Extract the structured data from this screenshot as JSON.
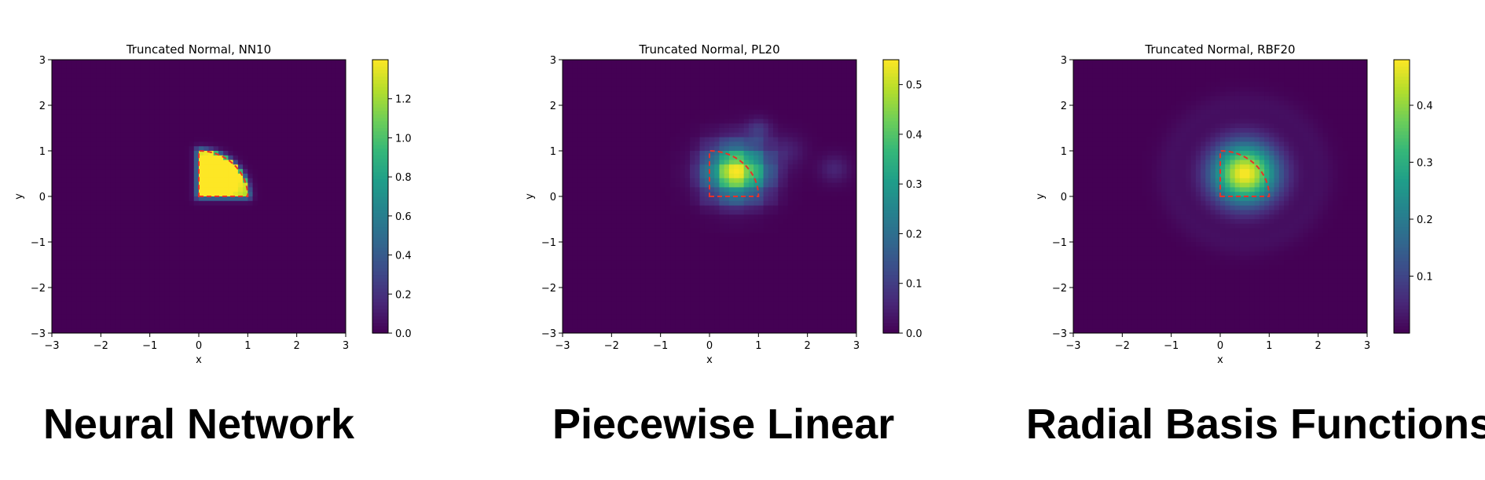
{
  "colormap": [
    "#440154",
    "#482878",
    "#3e4989",
    "#31688e",
    "#26828e",
    "#1f9e89",
    "#35b779",
    "#6ece58",
    "#b5de2b",
    "#fde725"
  ],
  "boundary_color": "#e8322a",
  "chart_data": [
    {
      "type": "heatmap",
      "title": "Truncated Normal, NN10",
      "xlabel": "x",
      "ylabel": "y",
      "xlim": [
        -3,
        3
      ],
      "ylim": [
        -3,
        3
      ],
      "xticks": [
        -3,
        -2,
        -1,
        0,
        1,
        2,
        3
      ],
      "yticks": [
        -3,
        -2,
        -1,
        0,
        1,
        2,
        3
      ],
      "xtick_labels": [
        "−3",
        "−2",
        "−1",
        "0",
        "1",
        "2",
        "3"
      ],
      "ytick_labels": [
        "−3",
        "−2",
        "−1",
        "0",
        "1",
        "2",
        "3"
      ],
      "colorbar": {
        "min": 0,
        "max": 1.4,
        "ticks": [
          0.0,
          0.2,
          0.4,
          0.6,
          0.8,
          1.0,
          1.2
        ],
        "tick_labels": [
          "0.0",
          "0.2",
          "0.4",
          "0.6",
          "0.8",
          "1.0",
          "1.2"
        ]
      },
      "density_model": "sharp",
      "density_peak": 1.4,
      "support_region": "quarter disk of radius 1 centered at origin, x≥0, y≥0 (dashed red boundary)",
      "caption": "Neural Network"
    },
    {
      "type": "heatmap",
      "title": "Truncated Normal, PL20",
      "xlabel": "x",
      "ylabel": "y",
      "xlim": [
        -3,
        3
      ],
      "ylim": [
        -3,
        3
      ],
      "xticks": [
        -3,
        -2,
        -1,
        0,
        1,
        2,
        3
      ],
      "yticks": [
        -3,
        -2,
        -1,
        0,
        1,
        2,
        3
      ],
      "xtick_labels": [
        "−3",
        "−2",
        "−1",
        "0",
        "1",
        "2",
        "3"
      ],
      "ytick_labels": [
        "−3",
        "−2",
        "−1",
        "0",
        "1",
        "2",
        "3"
      ],
      "colorbar": {
        "min": 0,
        "max": 0.55,
        "ticks": [
          0.0,
          0.1,
          0.2,
          0.3,
          0.4,
          0.5
        ],
        "tick_labels": [
          "0.0",
          "0.1",
          "0.2",
          "0.3",
          "0.4",
          "0.5"
        ]
      },
      "density_model": "piecewise",
      "density_peak": 0.55,
      "support_region": "quarter disk of radius 1 centered at origin, x≥0, y≥0 (dashed red boundary)",
      "caption": "Piecewise Linear"
    },
    {
      "type": "heatmap",
      "title": "Truncated Normal, RBF20",
      "xlabel": "x",
      "ylabel": "y",
      "xlim": [
        -3,
        3
      ],
      "ylim": [
        -3,
        3
      ],
      "xticks": [
        -3,
        -2,
        -1,
        0,
        1,
        2,
        3
      ],
      "yticks": [
        -3,
        -2,
        -1,
        0,
        1,
        2,
        3
      ],
      "xtick_labels": [
        "−3",
        "−2",
        "−1",
        "0",
        "1",
        "2",
        "3"
      ],
      "ytick_labels": [
        "−3",
        "−2",
        "−1",
        "0",
        "1",
        "2",
        "3"
      ],
      "colorbar": {
        "min": 0,
        "max": 0.48,
        "ticks": [
          0.1,
          0.2,
          0.3,
          0.4
        ],
        "tick_labels": [
          "0.1",
          "0.2",
          "0.3",
          "0.4"
        ]
      },
      "density_model": "smooth",
      "density_peak": 0.48,
      "support_region": "quarter disk of radius 1 centered at origin, x≥0, y≥0 (dashed red boundary)",
      "caption": "Radial Basis Functions"
    }
  ]
}
